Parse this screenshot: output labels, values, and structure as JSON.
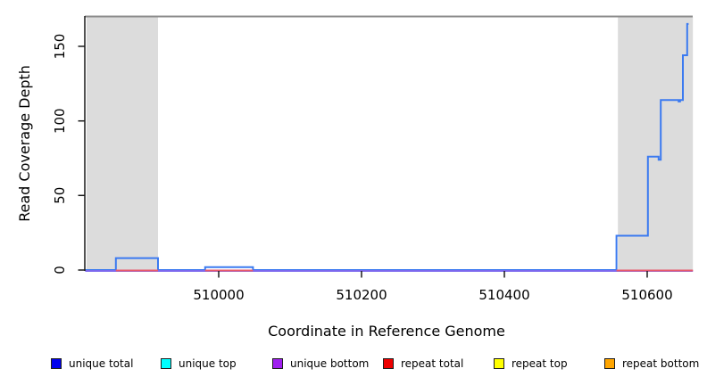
{
  "chart_data": {
    "type": "line",
    "subtype": "step-coverage-plot",
    "title": "",
    "xlabel": "Coordinate in Reference Genome",
    "ylabel": "Read Coverage Depth",
    "x_ticks": [
      510000,
      510200,
      510400,
      510600
    ],
    "y_ticks": [
      0,
      50,
      100,
      150
    ],
    "xlim": [
      509813,
      510664
    ],
    "ylim": [
      0,
      170
    ],
    "grid": false,
    "legend_position": "bottom",
    "shaded_regions": [
      {
        "name": "repeat-region-left",
        "x_range": [
          509815,
          509915
        ],
        "color": "#dcdcdc"
      },
      {
        "name": "repeat-region-right",
        "x_range": [
          510559,
          510664
        ],
        "color": "#dcdcdc"
      }
    ],
    "boundary_line": {
      "y": 170,
      "color": "#8c8c8c"
    },
    "series": [
      {
        "name": "unique total",
        "type": "step",
        "color": "#3b7af0",
        "points": [
          [
            509813,
            0
          ],
          [
            509856,
            8
          ],
          [
            509915,
            0
          ],
          [
            509981,
            2
          ],
          [
            510048,
            0
          ],
          [
            510557,
            23
          ],
          [
            510601,
            76
          ],
          [
            510616,
            74
          ],
          [
            510619,
            114
          ],
          [
            510644,
            113
          ],
          [
            510646,
            114
          ],
          [
            510650,
            144
          ],
          [
            510656,
            165
          ]
        ],
        "end_x": 510658
      },
      {
        "name": "unique bottom",
        "type": "line",
        "color": "#7b68ee",
        "y": 0,
        "x_range": [
          509813,
          510664
        ]
      },
      {
        "name": "repeat total",
        "type": "segments",
        "color": "#e8596b",
        "y": 0,
        "segments": [
          [
            509856,
            509915
          ],
          [
            509981,
            510048
          ],
          [
            510557,
            510664
          ]
        ]
      }
    ],
    "legend": [
      {
        "label": "unique total",
        "color": "#0000ee"
      },
      {
        "label": "unique top",
        "color": "#00ffff"
      },
      {
        "label": "unique bottom",
        "color": "#a020f0"
      },
      {
        "label": "repeat total",
        "color": "#ee0000"
      },
      {
        "label": "repeat top",
        "color": "#ffff00"
      },
      {
        "label": "repeat bottom",
        "color": "#ffa500"
      }
    ]
  }
}
